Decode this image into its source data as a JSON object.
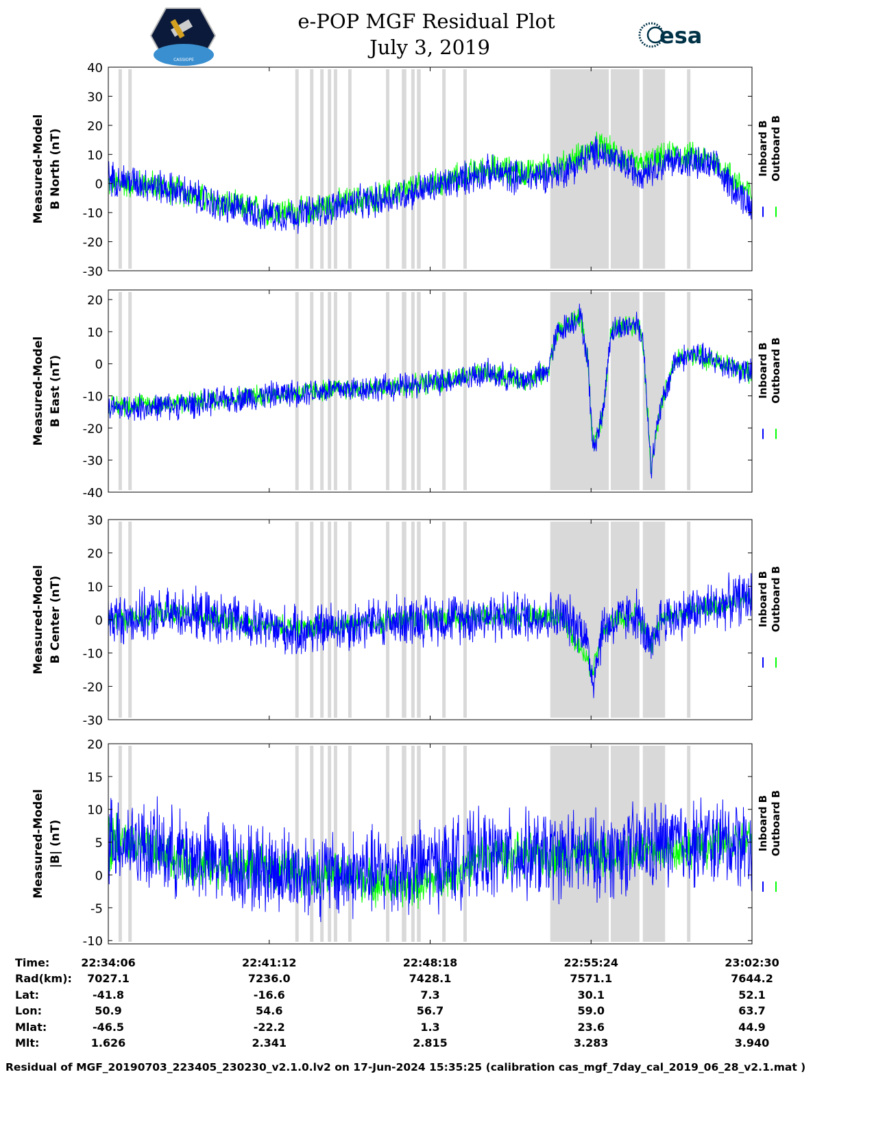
{
  "header": {
    "title": "e-POP MGF Residual Plot",
    "date": "July 3, 2019",
    "left_logo": "CASSIOPE",
    "right_logo": "esa"
  },
  "colors": {
    "inboard": "#0000ff",
    "outboard": "#00ff00",
    "band": "#d9d9d9"
  },
  "chart_data": [
    {
      "type": "line",
      "title": "B North",
      "ylabel": [
        "Measured-Model",
        "B North (nT)"
      ],
      "ylim": [
        -30,
        40
      ],
      "yticks": [
        40,
        30,
        20,
        10,
        0,
        -10,
        -20,
        -30
      ],
      "legend": [
        "Inboard B",
        "Outboard B"
      ],
      "legend_placement": "right",
      "series": [
        {
          "name": "Inboard B",
          "noise_amplitude": 7,
          "trend": [
            [
              0,
              2
            ],
            [
              100,
              0
            ],
            [
              200,
              -3
            ],
            [
              300,
              -8
            ],
            [
              400,
              -10
            ],
            [
              500,
              -11
            ],
            [
              600,
              -8
            ],
            [
              700,
              -6
            ],
            [
              800,
              -3
            ],
            [
              900,
              0
            ],
            [
              1000,
              4
            ],
            [
              1100,
              2
            ],
            [
              1200,
              4
            ],
            [
              1300,
              11
            ],
            [
              1400,
              4
            ],
            [
              1500,
              8
            ],
            [
              1600,
              6
            ],
            [
              1704,
              -8
            ]
          ]
        },
        {
          "name": "Outboard B",
          "noise_amplitude": 6,
          "trend": [
            [
              0,
              0
            ],
            [
              100,
              0
            ],
            [
              200,
              -3
            ],
            [
              300,
              -7
            ],
            [
              400,
              -9
            ],
            [
              500,
              -10
            ],
            [
              600,
              -7
            ],
            [
              700,
              -5
            ],
            [
              800,
              -2
            ],
            [
              900,
              1
            ],
            [
              1000,
              5
            ],
            [
              1100,
              4
            ],
            [
              1200,
              6
            ],
            [
              1300,
              13
            ],
            [
              1400,
              6
            ],
            [
              1500,
              10
            ],
            [
              1600,
              8
            ],
            [
              1704,
              -4
            ]
          ]
        }
      ]
    },
    {
      "type": "line",
      "title": "B East",
      "ylabel": [
        "Measured-Model",
        "B East (nT)"
      ],
      "ylim": [
        -40,
        23
      ],
      "yticks": [
        20,
        10,
        0,
        -10,
        -20,
        -30,
        -40
      ],
      "legend": [
        "Inboard B",
        "Outboard B"
      ],
      "legend_placement": "right",
      "series": [
        {
          "name": "Inboard B",
          "noise_amplitude": 5,
          "trend": [
            [
              0,
              -14
            ],
            [
              200,
              -13
            ],
            [
              400,
              -10
            ],
            [
              600,
              -8
            ],
            [
              800,
              -7
            ],
            [
              1000,
              -3
            ],
            [
              1100,
              -5
            ],
            [
              1160,
              -3
            ],
            [
              1190,
              10
            ],
            [
              1250,
              15
            ],
            [
              1270,
              0
            ],
            [
              1283,
              -27
            ],
            [
              1310,
              -15
            ],
            [
              1330,
              10
            ],
            [
              1400,
              13
            ],
            [
              1415,
              8
            ],
            [
              1437,
              -32
            ],
            [
              1460,
              -15
            ],
            [
              1500,
              1
            ],
            [
              1550,
              3
            ],
            [
              1704,
              -3
            ]
          ]
        },
        {
          "name": "Outboard B",
          "noise_amplitude": 4,
          "trend": [
            [
              0,
              -13
            ],
            [
              200,
              -12
            ],
            [
              400,
              -10
            ],
            [
              600,
              -8
            ],
            [
              800,
              -7
            ],
            [
              1000,
              -3
            ],
            [
              1100,
              -5
            ],
            [
              1160,
              -3
            ],
            [
              1190,
              10
            ],
            [
              1250,
              15
            ],
            [
              1270,
              0
            ],
            [
              1283,
              -27
            ],
            [
              1310,
              -15
            ],
            [
              1330,
              10
            ],
            [
              1400,
              13
            ],
            [
              1415,
              8
            ],
            [
              1437,
              -32
            ],
            [
              1460,
              -15
            ],
            [
              1500,
              1
            ],
            [
              1550,
              3
            ],
            [
              1704,
              -3
            ]
          ]
        }
      ]
    },
    {
      "type": "line",
      "title": "B Center",
      "ylabel": [
        "Measured-Model",
        "B Center (nT)"
      ],
      "ylim": [
        -30,
        30
      ],
      "yticks": [
        30,
        20,
        10,
        0,
        -10,
        -20,
        -30
      ],
      "legend": [
        "Inboard B",
        "Outboard B"
      ],
      "legend_placement": "right",
      "series": [
        {
          "name": "Inboard B",
          "noise_amplitude": 9,
          "trend": [
            [
              0,
              0
            ],
            [
              200,
              2
            ],
            [
              400,
              -2
            ],
            [
              500,
              -4
            ],
            [
              600,
              -2
            ],
            [
              800,
              0
            ],
            [
              1000,
              1
            ],
            [
              1200,
              1
            ],
            [
              1260,
              -3
            ],
            [
              1283,
              -18
            ],
            [
              1310,
              -2
            ],
            [
              1400,
              2
            ],
            [
              1437,
              -10
            ],
            [
              1460,
              0
            ],
            [
              1600,
              4
            ],
            [
              1704,
              7
            ]
          ]
        },
        {
          "name": "Outboard B",
          "noise_amplitude": 4,
          "trend": [
            [
              0,
              0
            ],
            [
              200,
              2
            ],
            [
              400,
              -2
            ],
            [
              600,
              -2
            ],
            [
              800,
              0
            ],
            [
              1000,
              1
            ],
            [
              1200,
              1
            ],
            [
              1283,
              -15
            ],
            [
              1310,
              -2
            ],
            [
              1400,
              2
            ],
            [
              1437,
              -8
            ],
            [
              1460,
              0
            ],
            [
              1600,
              4
            ],
            [
              1704,
              7
            ]
          ]
        }
      ]
    },
    {
      "type": "line",
      "title": "|B|",
      "ylabel": [
        "Measured-Model",
        "|B| (nT)"
      ],
      "ylim": [
        -10.5,
        20
      ],
      "yticks": [
        20,
        15,
        10,
        5,
        0,
        -5,
        -10
      ],
      "legend": [
        "Inboard B",
        "Outboard B"
      ],
      "legend_placement": "right",
      "series": [
        {
          "name": "Inboard B",
          "noise_amplitude": 8,
          "trend": [
            [
              0,
              6
            ],
            [
              200,
              3
            ],
            [
              400,
              1
            ],
            [
              600,
              0
            ],
            [
              800,
              1
            ],
            [
              1000,
              3
            ],
            [
              1100,
              3
            ],
            [
              1300,
              3
            ],
            [
              1500,
              5
            ],
            [
              1704,
              5
            ]
          ]
        },
        {
          "name": "Outboard B",
          "noise_amplitude": 4,
          "trend": [
            [
              0,
              6
            ],
            [
              40,
              5
            ],
            [
              200,
              2
            ],
            [
              600,
              0
            ],
            [
              800,
              -2
            ],
            [
              900,
              0
            ],
            [
              1000,
              3
            ],
            [
              1300,
              3
            ],
            [
              1704,
              5
            ]
          ]
        }
      ]
    }
  ],
  "x_axis": {
    "unit": "seconds since 22:34:06",
    "xlim": [
      0,
      1704
    ],
    "tick_seconds": [
      0,
      426,
      852,
      1278,
      1704
    ]
  },
  "gray_bands_seconds": [
    [
      27,
      36
    ],
    [
      53,
      62
    ],
    [
      495,
      504
    ],
    [
      534,
      543
    ],
    [
      561,
      570
    ],
    [
      581,
      590
    ],
    [
      597,
      606
    ],
    [
      635,
      644
    ],
    [
      735,
      744
    ],
    [
      777,
      789
    ],
    [
      802,
      811
    ],
    [
      817,
      827
    ],
    [
      884,
      893
    ],
    [
      940,
      949
    ],
    [
      1170,
      1325
    ],
    [
      1330,
      1406
    ],
    [
      1415,
      1474
    ],
    [
      1532,
      1541
    ]
  ],
  "ephemeris": {
    "rows": [
      {
        "label": "Time:",
        "values": [
          "22:34:06",
          "22:41:12",
          "22:48:18",
          "22:55:24",
          "23:02:30"
        ]
      },
      {
        "label": "Rad(km):",
        "values": [
          "7027.1",
          "7236.0",
          "7428.1",
          "7571.1",
          "7644.2"
        ]
      },
      {
        "label": "Lat:",
        "values": [
          "-41.8",
          "-16.6",
          "7.3",
          "30.1",
          "52.1"
        ]
      },
      {
        "label": "Lon:",
        "values": [
          "50.9",
          "54.6",
          "56.7",
          "59.0",
          "63.7"
        ]
      },
      {
        "label": "Mlat:",
        "values": [
          "-46.5",
          "-22.2",
          "1.3",
          "23.6",
          "44.9"
        ]
      },
      {
        "label": "Mlt:",
        "values": [
          "1.626",
          "2.341",
          "2.815",
          "3.283",
          "3.940"
        ]
      }
    ]
  },
  "footer": "Residual of MGF_20190703_223405_230230_v2.1.0.lv2 on 17-Jun-2024 15:35:25 (calibration cas_mgf_7day_cal_2019_06_28_v2.1.mat )"
}
